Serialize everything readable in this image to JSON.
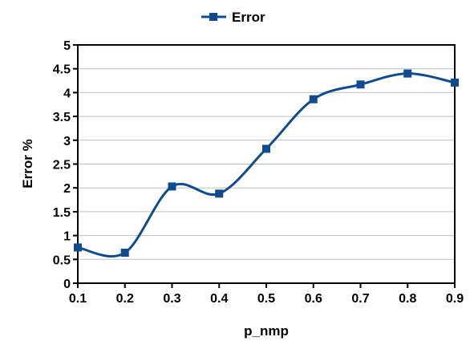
{
  "chart_data": {
    "type": "line",
    "smooth": true,
    "x": [
      0.1,
      0.2,
      0.3,
      0.4,
      0.5,
      0.6,
      0.7,
      0.8,
      0.9
    ],
    "series": [
      {
        "name": "Error",
        "values": [
          0.75,
          0.64,
          2.03,
          1.88,
          2.82,
          3.86,
          4.17,
          4.4,
          4.21
        ],
        "color": "#0E4C8F"
      }
    ],
    "xlabel": "p_nmp",
    "ylabel": "Error %",
    "xlim": [
      0.1,
      0.9
    ],
    "ylim": [
      0,
      5
    ],
    "x_ticks": [
      "0.1",
      "0.2",
      "0.3",
      "0.4",
      "0.5",
      "0.6",
      "0.7",
      "0.8",
      "0.9"
    ],
    "y_ticks": [
      "0",
      "0.5",
      "1",
      "1.5",
      "2",
      "2.5",
      "3",
      "3.5",
      "4",
      "4.5",
      "5"
    ],
    "grid": true,
    "legend_position": "top-center",
    "marker": "square"
  }
}
